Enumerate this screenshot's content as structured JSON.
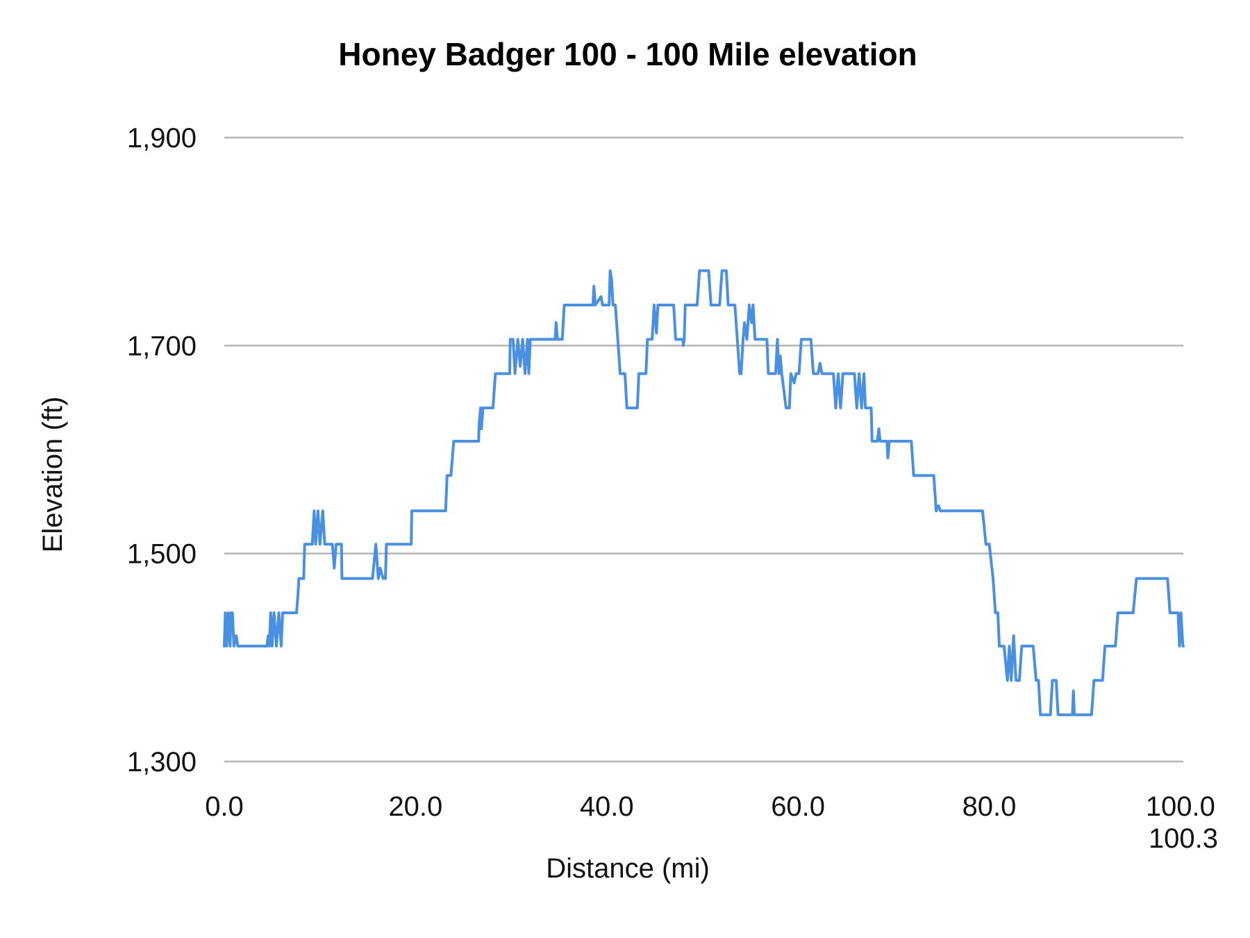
{
  "chart_data": {
    "type": "line",
    "title": "Honey Badger 100 - 100 Mile elevation",
    "xlabel": "Distance (mi)",
    "ylabel": "Elevation (ft)",
    "xlim": [
      0,
      100.3
    ],
    "ylim": [
      1300,
      1900
    ],
    "x_ticks": [
      "0.0",
      "20.0",
      "40.0",
      "60.0",
      "80.0",
      "100.0",
      "100.3"
    ],
    "x_tick_values": [
      0,
      20,
      40,
      60,
      80,
      100,
      100.3
    ],
    "y_ticks": [
      "1,300",
      "1,500",
      "1,700",
      "1,900"
    ],
    "y_tick_values": [
      1300,
      1500,
      1700,
      1900
    ],
    "grid": "horizontal",
    "legend": "none",
    "line_color": "#4a90e2",
    "grid_color": "#b3b3b3",
    "series": [
      {
        "points": [
          [
            0,
            1411
          ],
          [
            0.1,
            1443
          ],
          [
            0.25,
            1411
          ],
          [
            0.4,
            1443
          ],
          [
            0.6,
            1411
          ],
          [
            0.7,
            1443
          ],
          [
            0.85,
            1443
          ],
          [
            1.0,
            1411
          ],
          [
            1.25,
            1421
          ],
          [
            1.4,
            1411
          ],
          [
            4.45,
            1411
          ],
          [
            4.6,
            1421
          ],
          [
            4.7,
            1411
          ],
          [
            4.85,
            1443
          ],
          [
            5.0,
            1411
          ],
          [
            5.2,
            1443
          ],
          [
            5.45,
            1411
          ],
          [
            5.7,
            1443
          ],
          [
            5.95,
            1411
          ],
          [
            6.1,
            1443
          ],
          [
            6.3,
            1443
          ],
          [
            7.55,
            1443
          ],
          [
            7.7,
            1460
          ],
          [
            7.8,
            1476
          ],
          [
            8.3,
            1476
          ],
          [
            8.4,
            1509
          ],
          [
            9.2,
            1509
          ],
          [
            9.4,
            1541
          ],
          [
            9.55,
            1509
          ],
          [
            9.8,
            1541
          ],
          [
            10.0,
            1509
          ],
          [
            10.3,
            1541
          ],
          [
            10.5,
            1509
          ],
          [
            11.3,
            1509
          ],
          [
            11.5,
            1486
          ],
          [
            11.7,
            1509
          ],
          [
            12.25,
            1509
          ],
          [
            12.3,
            1476
          ],
          [
            15.5,
            1476
          ],
          [
            15.85,
            1509
          ],
          [
            16.1,
            1476
          ],
          [
            16.3,
            1486
          ],
          [
            16.6,
            1476
          ],
          [
            16.85,
            1476
          ],
          [
            16.95,
            1509
          ],
          [
            19.55,
            1509
          ],
          [
            19.6,
            1541
          ],
          [
            23.15,
            1541
          ],
          [
            23.3,
            1575
          ],
          [
            23.7,
            1575
          ],
          [
            24.0,
            1608
          ],
          [
            26.6,
            1608
          ],
          [
            26.65,
            1624
          ],
          [
            26.8,
            1640
          ],
          [
            26.9,
            1620
          ],
          [
            27.05,
            1640
          ],
          [
            27.15,
            1640
          ],
          [
            28.1,
            1640
          ],
          [
            28.35,
            1673
          ],
          [
            29.85,
            1673
          ],
          [
            29.9,
            1706
          ],
          [
            30.2,
            1706
          ],
          [
            30.4,
            1673
          ],
          [
            30.7,
            1706
          ],
          [
            30.95,
            1680
          ],
          [
            31.2,
            1706
          ],
          [
            31.45,
            1673
          ],
          [
            31.7,
            1706
          ],
          [
            31.85,
            1673
          ],
          [
            32.0,
            1706
          ],
          [
            34.6,
            1706
          ],
          [
            34.7,
            1722
          ],
          [
            34.85,
            1706
          ],
          [
            35.35,
            1706
          ],
          [
            35.55,
            1739
          ],
          [
            38.55,
            1739
          ],
          [
            38.65,
            1757
          ],
          [
            38.8,
            1739
          ],
          [
            39.4,
            1747
          ],
          [
            39.55,
            1739
          ],
          [
            40.25,
            1739
          ],
          [
            40.35,
            1772
          ],
          [
            40.5,
            1764
          ],
          [
            40.65,
            1739
          ],
          [
            40.9,
            1739
          ],
          [
            41.15,
            1706
          ],
          [
            41.4,
            1673
          ],
          [
            41.9,
            1673
          ],
          [
            42.1,
            1640
          ],
          [
            43.2,
            1640
          ],
          [
            43.35,
            1673
          ],
          [
            44.1,
            1673
          ],
          [
            44.25,
            1706
          ],
          [
            44.75,
            1706
          ],
          [
            44.95,
            1739
          ],
          [
            45.2,
            1712
          ],
          [
            45.35,
            1739
          ],
          [
            45.5,
            1739
          ],
          [
            47.0,
            1739
          ],
          [
            47.2,
            1706
          ],
          [
            47.95,
            1706
          ],
          [
            48.0,
            1700
          ],
          [
            48.1,
            1706
          ],
          [
            48.2,
            1739
          ],
          [
            49.45,
            1739
          ],
          [
            49.7,
            1772
          ],
          [
            50.65,
            1772
          ],
          [
            50.9,
            1739
          ],
          [
            51.8,
            1739
          ],
          [
            52.05,
            1772
          ],
          [
            52.5,
            1772
          ],
          [
            52.7,
            1739
          ],
          [
            53.4,
            1739
          ],
          [
            53.65,
            1706
          ],
          [
            53.9,
            1673
          ],
          [
            54.05,
            1673
          ],
          [
            54.25,
            1706
          ],
          [
            54.4,
            1722
          ],
          [
            54.65,
            1706
          ],
          [
            54.9,
            1739
          ],
          [
            55.15,
            1722
          ],
          [
            55.3,
            1739
          ],
          [
            55.5,
            1706
          ],
          [
            56.75,
            1706
          ],
          [
            56.9,
            1673
          ],
          [
            57.65,
            1673
          ],
          [
            57.85,
            1706
          ],
          [
            58.0,
            1673
          ],
          [
            58.15,
            1690
          ],
          [
            58.3,
            1673
          ],
          [
            58.75,
            1640
          ],
          [
            59.1,
            1640
          ],
          [
            59.25,
            1673
          ],
          [
            59.6,
            1664
          ],
          [
            59.8,
            1673
          ],
          [
            60.1,
            1673
          ],
          [
            60.35,
            1706
          ],
          [
            61.35,
            1706
          ],
          [
            61.6,
            1673
          ],
          [
            62.1,
            1673
          ],
          [
            62.3,
            1683
          ],
          [
            62.5,
            1673
          ],
          [
            63.7,
            1673
          ],
          [
            63.95,
            1640
          ],
          [
            64.2,
            1673
          ],
          [
            64.45,
            1640
          ],
          [
            64.7,
            1673
          ],
          [
            65.9,
            1673
          ],
          [
            66.15,
            1640
          ],
          [
            66.4,
            1673
          ],
          [
            66.65,
            1640
          ],
          [
            66.9,
            1673
          ],
          [
            67.05,
            1640
          ],
          [
            67.65,
            1640
          ],
          [
            67.75,
            1608
          ],
          [
            68.3,
            1608
          ],
          [
            68.45,
            1620
          ],
          [
            68.6,
            1608
          ],
          [
            69.3,
            1608
          ],
          [
            69.4,
            1592
          ],
          [
            69.55,
            1608
          ],
          [
            71.85,
            1608
          ],
          [
            72.1,
            1575
          ],
          [
            74.2,
            1575
          ],
          [
            74.45,
            1541
          ],
          [
            74.7,
            1546
          ],
          [
            74.9,
            1541
          ],
          [
            79.3,
            1541
          ],
          [
            79.65,
            1509
          ],
          [
            80.0,
            1509
          ],
          [
            80.4,
            1476
          ],
          [
            80.65,
            1443
          ],
          [
            80.9,
            1443
          ],
          [
            81.05,
            1411
          ],
          [
            81.55,
            1411
          ],
          [
            81.9,
            1378
          ],
          [
            82.1,
            1411
          ],
          [
            82.3,
            1378
          ],
          [
            82.55,
            1421
          ],
          [
            82.8,
            1378
          ],
          [
            83.15,
            1378
          ],
          [
            83.4,
            1411
          ],
          [
            83.65,
            1411
          ],
          [
            84.6,
            1411
          ],
          [
            84.9,
            1378
          ],
          [
            85.15,
            1378
          ],
          [
            85.35,
            1345
          ],
          [
            86.4,
            1345
          ],
          [
            86.6,
            1378
          ],
          [
            87.0,
            1378
          ],
          [
            87.2,
            1345
          ],
          [
            88.7,
            1345
          ],
          [
            88.8,
            1368
          ],
          [
            88.9,
            1345
          ],
          [
            90.7,
            1345
          ],
          [
            90.95,
            1378
          ],
          [
            91.85,
            1378
          ],
          [
            92.1,
            1411
          ],
          [
            93.2,
            1411
          ],
          [
            93.45,
            1443
          ],
          [
            95.05,
            1443
          ],
          [
            95.4,
            1476
          ],
          [
            98.65,
            1476
          ],
          [
            98.9,
            1443
          ],
          [
            99.75,
            1443
          ],
          [
            99.9,
            1411
          ],
          [
            100.05,
            1443
          ],
          [
            100.25,
            1411
          ],
          [
            100.3,
            1411
          ]
        ]
      }
    ]
  }
}
